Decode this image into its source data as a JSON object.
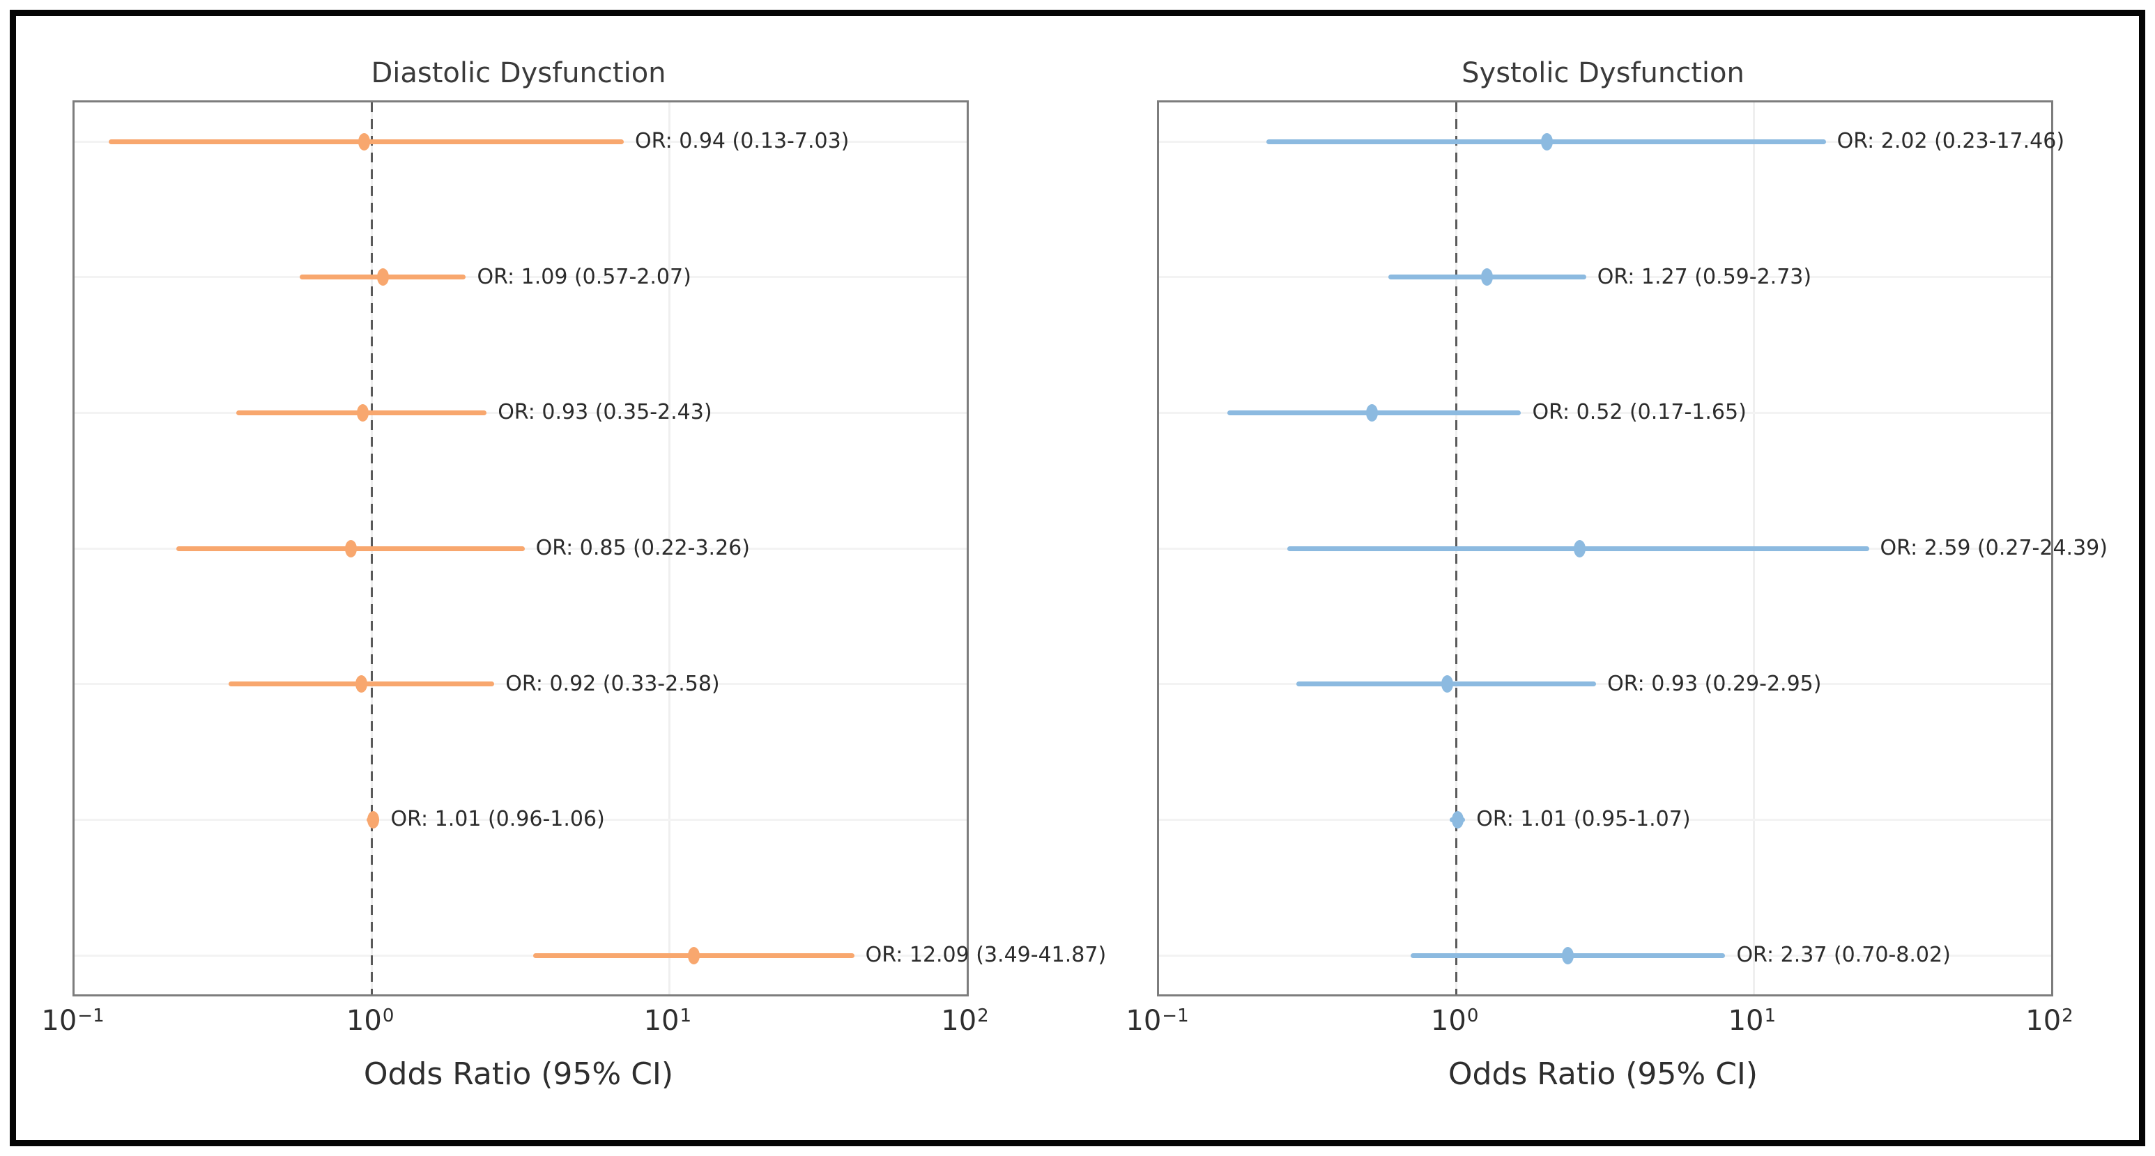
{
  "figure": {
    "background": "#ffffff",
    "frame_color": "#050505"
  },
  "chart_data": [
    {
      "type": "forest",
      "title": "Diastolic Dysfunction",
      "xlabel": "Odds Ratio (95% CI)",
      "x_scale": "log",
      "log_base": "10",
      "xlim": [
        0.1,
        100
      ],
      "grid": true,
      "reference_line": 1.0,
      "series_color": "#f8a76e",
      "x_ticks": [
        {
          "value": 0.1,
          "exponent": "−1"
        },
        {
          "value": 1,
          "exponent": "0"
        },
        {
          "value": 10,
          "exponent": "1"
        },
        {
          "value": 100,
          "exponent": "2"
        }
      ],
      "rows": [
        {
          "or": 0.94,
          "ci_low": 0.13,
          "ci_high": 7.03,
          "label": "OR: 0.94 (0.13-7.03)"
        },
        {
          "or": 1.09,
          "ci_low": 0.57,
          "ci_high": 2.07,
          "label": "OR: 1.09 (0.57-2.07)"
        },
        {
          "or": 0.93,
          "ci_low": 0.35,
          "ci_high": 2.43,
          "label": "OR: 0.93 (0.35-2.43)"
        },
        {
          "or": 0.85,
          "ci_low": 0.22,
          "ci_high": 3.26,
          "label": "OR: 0.85 (0.22-3.26)"
        },
        {
          "or": 0.92,
          "ci_low": 0.33,
          "ci_high": 2.58,
          "label": "OR: 0.92 (0.33-2.58)"
        },
        {
          "or": 1.01,
          "ci_low": 0.96,
          "ci_high": 1.06,
          "label": "OR: 1.01 (0.96-1.06)"
        },
        {
          "or": 12.09,
          "ci_low": 3.49,
          "ci_high": 41.87,
          "label": "OR: 12.09 (3.49-41.87)"
        }
      ]
    },
    {
      "type": "forest",
      "title": "Systolic Dysfunction",
      "xlabel": "Odds Ratio (95% CI)",
      "x_scale": "log",
      "log_base": "10",
      "xlim": [
        0.1,
        100
      ],
      "grid": true,
      "reference_line": 1.0,
      "series_color": "#8cbae0",
      "x_ticks": [
        {
          "value": 0.1,
          "exponent": "−1"
        },
        {
          "value": 1,
          "exponent": "0"
        },
        {
          "value": 10,
          "exponent": "1"
        },
        {
          "value": 100,
          "exponent": "2"
        }
      ],
      "rows": [
        {
          "or": 2.02,
          "ci_low": 0.23,
          "ci_high": 17.46,
          "label": "OR: 2.02 (0.23-17.46)"
        },
        {
          "or": 1.27,
          "ci_low": 0.59,
          "ci_high": 2.73,
          "label": "OR: 1.27 (0.59-2.73)"
        },
        {
          "or": 0.52,
          "ci_low": 0.17,
          "ci_high": 1.65,
          "label": "OR: 0.52 (0.17-1.65)"
        },
        {
          "or": 2.59,
          "ci_low": 0.27,
          "ci_high": 24.39,
          "label": "OR: 2.59 (0.27-24.39)"
        },
        {
          "or": 0.93,
          "ci_low": 0.29,
          "ci_high": 2.95,
          "label": "OR: 0.93 (0.29-2.95)"
        },
        {
          "or": 1.01,
          "ci_low": 0.95,
          "ci_high": 1.07,
          "label": "OR: 1.01 (0.95-1.07)"
        },
        {
          "or": 2.37,
          "ci_low": 0.7,
          "ci_high": 8.02,
          "label": "OR: 2.37 (0.70-8.02)"
        }
      ]
    }
  ]
}
